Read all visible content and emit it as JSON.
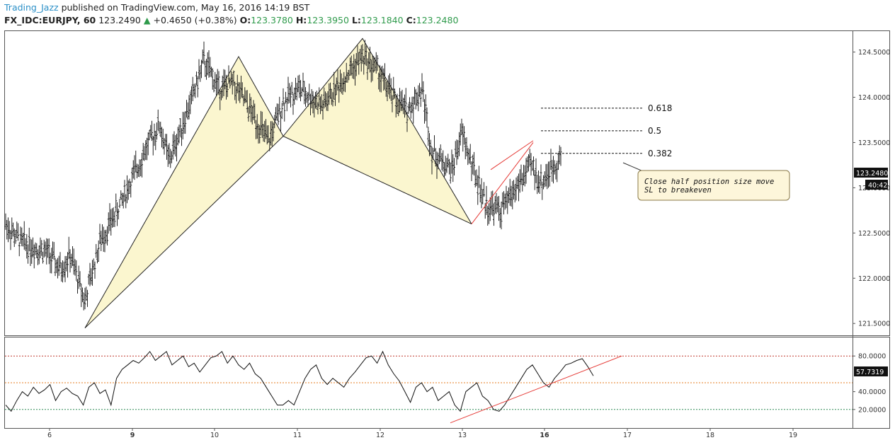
{
  "header": {
    "author": "Trading_Jazz",
    "published": "published on TradingView.com, May 16, 2016 14:19 BST",
    "symbol": "FX_IDC:EURJPY, 60",
    "last": "123.2490",
    "change_arrow": "▲",
    "change": "+0.4650 (+0.38%)",
    "o_label": "O:",
    "o": "123.3780",
    "h_label": "H:",
    "h": "123.3950",
    "l_label": "L:",
    "l": "123.1840",
    "c_label": "C:",
    "c": "123.2480"
  },
  "chart_data": [
    {
      "type": "candlestick",
      "title": "",
      "x_ticks": [
        "6",
        "9",
        "10",
        "11",
        "12",
        "13",
        "16",
        "17",
        "18",
        "19"
      ],
      "x_ticks_bold": [
        "9",
        "16"
      ],
      "y_ticks": [
        "124.5000",
        "124.0000",
        "123.5000",
        "123.0000",
        "122.5000",
        "122.0000",
        "121.5000"
      ],
      "ylim": [
        121.4,
        124.7
      ],
      "last_price_label": "123.2480",
      "countdown_label": "40:42",
      "price_path": [
        [
          0,
          122.6
        ],
        [
          3,
          122.4
        ],
        [
          8,
          122.3
        ],
        [
          11,
          122.1
        ],
        [
          13,
          122.25
        ],
        [
          16,
          121.75
        ],
        [
          19,
          122.4
        ],
        [
          23,
          122.8
        ],
        [
          28,
          123.4
        ],
        [
          31,
          123.7
        ],
        [
          33,
          123.3
        ],
        [
          37,
          123.9
        ],
        [
          40,
          124.4
        ],
        [
          43,
          124.1
        ],
        [
          46,
          124.15
        ],
        [
          50,
          123.8
        ],
        [
          53,
          123.5
        ],
        [
          56,
          123.95
        ],
        [
          59,
          124.1
        ],
        [
          64,
          123.9
        ],
        [
          68,
          124.2
        ],
        [
          72,
          124.45
        ],
        [
          75,
          124.3
        ],
        [
          78,
          124.0
        ],
        [
          81,
          123.85
        ],
        [
          84,
          124.1
        ],
        [
          86,
          123.4
        ],
        [
          90,
          123.2
        ],
        [
          92,
          123.6
        ],
        [
          95,
          123.1
        ],
        [
          97,
          122.8
        ],
        [
          100,
          122.75
        ],
        [
          103,
          123.0
        ],
        [
          106,
          123.25
        ],
        [
          108,
          123.05
        ],
        [
          110,
          123.2
        ],
        [
          112,
          123.35
        ]
      ],
      "harmonic_patterns": [
        {
          "points": [
            [
              16,
              121.45
            ],
            [
              47,
              124.45
            ],
            [
              56,
              123.57
            ],
            [
              72,
              124.65
            ],
            [
              94,
              122.6
            ]
          ]
        }
      ],
      "fib_levels": [
        {
          "label": "0.618",
          "value": 123.88
        },
        {
          "label": "0.5",
          "value": 123.63
        },
        {
          "label": "0.382",
          "value": 123.38
        }
      ],
      "trend_channel": {
        "lower": [
          [
            94,
            122.6
          ],
          [
            105,
            123.5
          ]
        ],
        "upper": [
          [
            95,
            123.2
          ],
          [
            105,
            123.52
          ]
        ]
      },
      "annotation": {
        "line1": "Close half position size move",
        "line2": "SL to breakeven"
      }
    },
    {
      "type": "line",
      "title": "",
      "name": "",
      "ylim": [
        0,
        100
      ],
      "y_ticks": [
        "80.0000",
        "40.0000",
        "20.0000"
      ],
      "levels": [
        80,
        50,
        20
      ],
      "last_value_label": "57.7319",
      "values": [
        25,
        18,
        30,
        40,
        35,
        45,
        38,
        42,
        48,
        30,
        40,
        44,
        38,
        35,
        25,
        45,
        50,
        38,
        42,
        25,
        55,
        65,
        70,
        75,
        72,
        78,
        85,
        75,
        80,
        85,
        70,
        75,
        80,
        68,
        72,
        62,
        70,
        78,
        80,
        85,
        72,
        80,
        70,
        65,
        72,
        60,
        55,
        45,
        35,
        25,
        25,
        30,
        25,
        40,
        55,
        65,
        70,
        55,
        48,
        55,
        50,
        45,
        55,
        62,
        70,
        78,
        80,
        72,
        85,
        70,
        60,
        52,
        40,
        28,
        45,
        50,
        40,
        45,
        30,
        35,
        40,
        25,
        18,
        40,
        45,
        50,
        35,
        30,
        20,
        18,
        25,
        35,
        45,
        55,
        65,
        70,
        60,
        50,
        45,
        55,
        62,
        70,
        72,
        75,
        77,
        68,
        57.73
      ],
      "trend_line": [
        [
          94,
          5
        ],
        [
          110,
          80
        ]
      ]
    }
  ]
}
